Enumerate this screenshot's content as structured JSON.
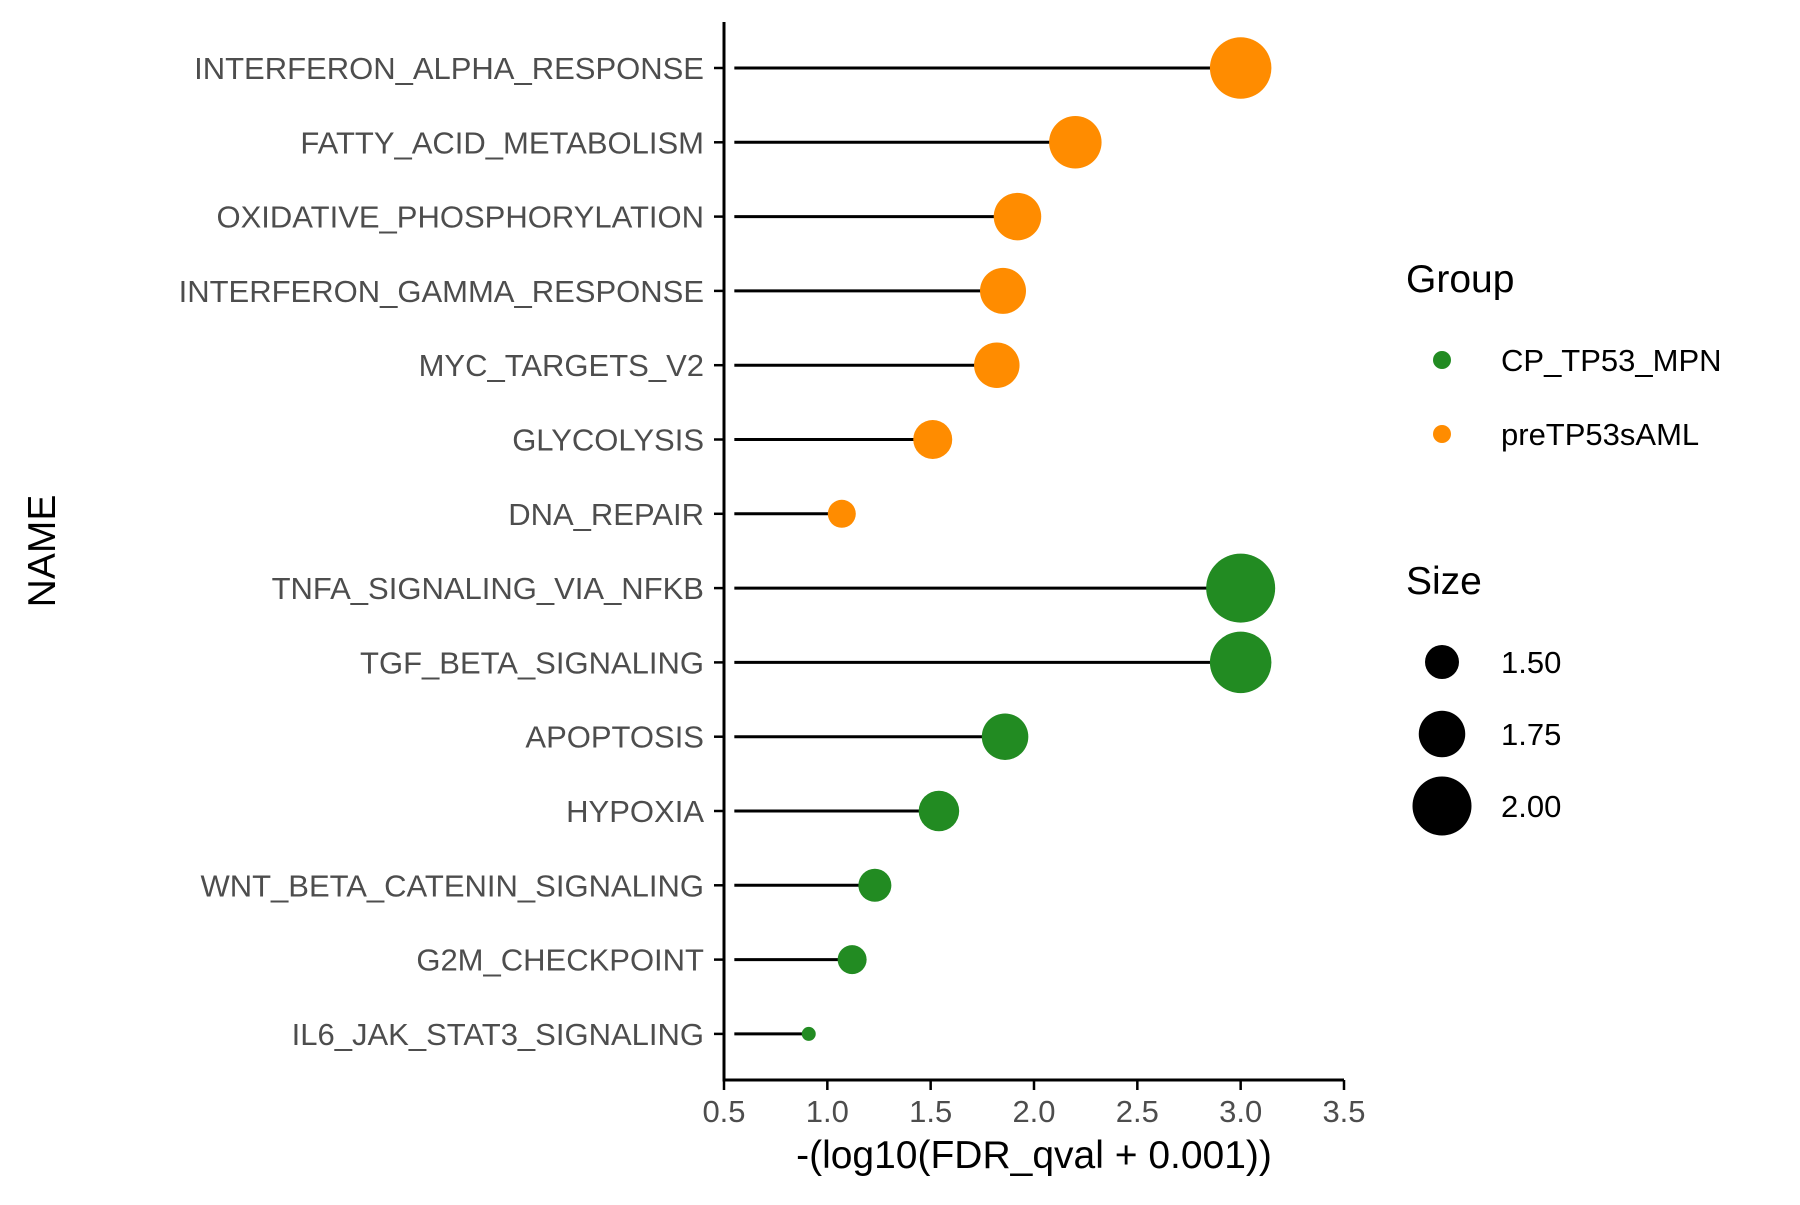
{
  "chart_data": {
    "type": "scatter",
    "subtype": "lollipop",
    "title": "",
    "xlabel": "-(log10(FDR_qval + 0.001))",
    "ylabel": "NAME",
    "xlim": [
      0.5,
      3.5
    ],
    "x_ticks": [
      "0.5",
      "1.0",
      "1.5",
      "2.0",
      "2.5",
      "3.0",
      "3.5"
    ],
    "x_tick_values": [
      0.5,
      1.0,
      1.5,
      2.0,
      2.5,
      3.0,
      3.5
    ],
    "categories": [
      "INTERFERON_ALPHA_RESPONSE",
      "FATTY_ACID_METABOLISM",
      "OXIDATIVE_PHOSPHORYLATION",
      "INTERFERON_GAMMA_RESPONSE",
      "MYC_TARGETS_V2",
      "GLYCOLYSIS",
      "DNA_REPAIR",
      "TNFA_SIGNALING_VIA_NFKB",
      "TGF_BETA_SIGNALING",
      "APOPTOSIS",
      "HYPOXIA",
      "WNT_BETA_CATENIN_SIGNALING",
      "G2M_CHECKPOINT",
      "IL6_JAK_STAT3_SIGNALING"
    ],
    "points": [
      {
        "name": "INTERFERON_ALPHA_RESPONSE",
        "x": 3.0,
        "group": "preTP53sAML",
        "size": 2.05
      },
      {
        "name": "FATTY_ACID_METABOLISM",
        "x": 2.2,
        "group": "preTP53sAML",
        "size": 1.87
      },
      {
        "name": "OXIDATIVE_PHOSPHORYLATION",
        "x": 1.92,
        "group": "preTP53sAML",
        "size": 1.77
      },
      {
        "name": "INTERFERON_GAMMA_RESPONSE",
        "x": 1.85,
        "group": "preTP53sAML",
        "size": 1.74
      },
      {
        "name": "MYC_TARGETS_V2",
        "x": 1.82,
        "group": "preTP53sAML",
        "size": 1.73
      },
      {
        "name": "GLYCOLYSIS",
        "x": 1.51,
        "group": "preTP53sAML",
        "size": 1.6
      },
      {
        "name": "DNA_REPAIR",
        "x": 1.07,
        "group": "preTP53sAML",
        "size": 1.38
      },
      {
        "name": "TNFA_SIGNALING_VIA_NFKB",
        "x": 3.0,
        "group": "CP_TP53_MPN",
        "size": 2.2
      },
      {
        "name": "TGF_BETA_SIGNALING",
        "x": 3.0,
        "group": "CP_TP53_MPN",
        "size": 2.05
      },
      {
        "name": "APOPTOSIS",
        "x": 1.86,
        "group": "CP_TP53_MPN",
        "size": 1.75
      },
      {
        "name": "HYPOXIA",
        "x": 1.54,
        "group": "CP_TP53_MPN",
        "size": 1.63
      },
      {
        "name": "WNT_BETA_CATENIN_SIGNALING",
        "x": 1.23,
        "group": "CP_TP53_MPN",
        "size": 1.48
      },
      {
        "name": "G2M_CHECKPOINT",
        "x": 1.12,
        "group": "CP_TP53_MPN",
        "size": 1.4
      },
      {
        "name": "IL6_JAK_STAT3_SIGNALING",
        "x": 0.91,
        "group": "CP_TP53_MPN",
        "size": 1.1
      }
    ],
    "segment_start_x": 0.55,
    "legend": {
      "placement": "right",
      "group_title": "Group",
      "groups": [
        {
          "name": "CP_TP53_MPN",
          "color": "#228b22"
        },
        {
          "name": "preTP53sAML",
          "color": "#ff8c00"
        }
      ],
      "size_title": "Size",
      "sizes": [
        {
          "label": "1.50",
          "value": 1.5
        },
        {
          "label": "1.75",
          "value": 1.75
        },
        {
          "label": "2.00",
          "value": 2.0
        }
      ]
    },
    "grid": false,
    "colors": {
      "CP_TP53_MPN": "#228b22",
      "preTP53sAML": "#ff8c00",
      "segment": "#000000",
      "axis": "#000000",
      "tick_label": "#4d4d4d"
    }
  }
}
